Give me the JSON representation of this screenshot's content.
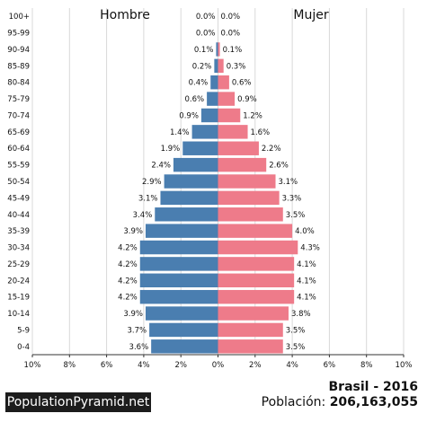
{
  "chart_data": {
    "type": "bar",
    "orientation": "horizontal-pyramid",
    "categories": [
      "100+",
      "95-99",
      "90-94",
      "85-89",
      "80-84",
      "75-79",
      "70-74",
      "65-69",
      "60-64",
      "55-59",
      "50-54",
      "45-49",
      "40-44",
      "35-39",
      "30-34",
      "25-29",
      "20-24",
      "15-19",
      "10-14",
      "5-9",
      "0-4"
    ],
    "series": [
      {
        "name": "Hombre",
        "color": "#4a7eb0",
        "values": [
          0.0,
          0.0,
          0.1,
          0.2,
          0.4,
          0.6,
          0.9,
          1.4,
          1.9,
          2.4,
          2.9,
          3.1,
          3.4,
          3.9,
          4.2,
          4.2,
          4.2,
          4.2,
          3.9,
          3.7,
          3.6
        ],
        "labels": [
          "0.0%",
          "0.0%",
          "0.1%",
          "0.2%",
          "0.4%",
          "0.6%",
          "0.9%",
          "1.4%",
          "1.9%",
          "2.4%",
          "2.9%",
          "3.1%",
          "3.4%",
          "3.9%",
          "4.2%",
          "4.2%",
          "4.2%",
          "4.2%",
          "3.9%",
          "3.7%",
          "3.6%"
        ]
      },
      {
        "name": "Mujer",
        "color": "#ee7b8a",
        "values": [
          0.0,
          0.0,
          0.1,
          0.3,
          0.6,
          0.9,
          1.2,
          1.6,
          2.2,
          2.6,
          3.1,
          3.3,
          3.5,
          4.0,
          4.3,
          4.1,
          4.1,
          4.1,
          3.8,
          3.5,
          3.5
        ],
        "labels": [
          "0.0%",
          "0.0%",
          "0.1%",
          "0.3%",
          "0.6%",
          "0.9%",
          "1.2%",
          "1.6%",
          "2.2%",
          "2.6%",
          "3.1%",
          "3.3%",
          "3.5%",
          "4.0%",
          "4.3%",
          "4.1%",
          "4.1%",
          "4.1%",
          "3.8%",
          "3.5%",
          "3.5%"
        ]
      }
    ],
    "xlim": [
      -10,
      10
    ],
    "xticks": [
      -10,
      -8,
      -6,
      -4,
      -2,
      0,
      2,
      4,
      6,
      8,
      10
    ],
    "xtick_labels": [
      "10%",
      "8%",
      "6%",
      "4%",
      "2%",
      "0%",
      "2%",
      "4%",
      "6%",
      "8%",
      "10%"
    ],
    "grid": true,
    "title": "Brasil - 2016"
  },
  "footer": {
    "brand": "PopulationPyramid.net",
    "country_year": "Brasil - 2016",
    "population_label": "Población:",
    "population_value": "206,163,055"
  }
}
